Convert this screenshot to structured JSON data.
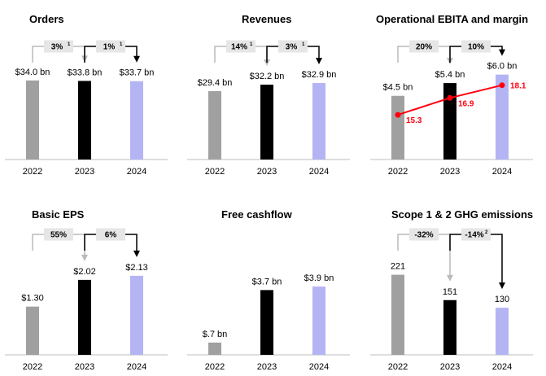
{
  "chart_data": [
    {
      "id": "orders",
      "type": "bar",
      "title": "Orders",
      "categories": [
        "2022",
        "2023",
        "2024"
      ],
      "values": [
        34.0,
        33.8,
        33.7
      ],
      "labels": [
        "$34.0 bn",
        "$33.8 bn",
        "$33.7 bn"
      ],
      "changes": [
        {
          "text": "3%",
          "sup": "1",
          "from": 0,
          "to": 1
        },
        {
          "text": "1%",
          "sup": "1",
          "from": 1,
          "to": 2
        }
      ],
      "ylim": [
        0,
        42
      ]
    },
    {
      "id": "revenues",
      "type": "bar",
      "title": "Revenues",
      "categories": [
        "2022",
        "2023",
        "2024"
      ],
      "values": [
        29.4,
        32.2,
        32.9
      ],
      "labels": [
        "$29.4 bn",
        "$32.2 bn",
        "$32.9 bn"
      ],
      "changes": [
        {
          "text": "14%",
          "sup": "1",
          "from": 0,
          "to": 1
        },
        {
          "text": "3%",
          "sup": "1",
          "from": 1,
          "to": 2
        }
      ],
      "ylim": [
        0,
        42
      ]
    },
    {
      "id": "ebita",
      "type": "bar",
      "title": "Operational EBITA and margin",
      "categories": [
        "2022",
        "2023",
        "2024"
      ],
      "values": [
        4.5,
        5.4,
        6.0
      ],
      "labels": [
        "$4.5 bn",
        "$5.4 bn",
        "$6.0 bn"
      ],
      "changes": [
        {
          "text": "20%",
          "sup": "",
          "from": 0,
          "to": 1
        },
        {
          "text": "10%",
          "sup": "",
          "from": 1,
          "to": 2
        }
      ],
      "line": {
        "name": "Operational EBITA margin (%)",
        "values": [
          15.3,
          16.9,
          18.1
        ],
        "labels": [
          "15.3",
          "16.9",
          "18.1"
        ],
        "color": "#ff000f",
        "ylim": [
          10,
          20
        ]
      },
      "ylim": [
        0,
        6.9
      ]
    },
    {
      "id": "eps",
      "type": "bar",
      "title": "Basic EPS",
      "categories": [
        "2022",
        "2023",
        "2024"
      ],
      "values": [
        1.3,
        2.02,
        2.13
      ],
      "labels": [
        "$1.30",
        "$2.02",
        "$2.13"
      ],
      "changes": [
        {
          "text": "55%",
          "sup": "",
          "from": 0,
          "to": 1
        },
        {
          "text": "6%",
          "sup": "",
          "from": 1,
          "to": 2
        }
      ],
      "ylim": [
        0,
        2.5
      ]
    },
    {
      "id": "fcf",
      "type": "bar",
      "title": "Free cashflow",
      "categories": [
        "2022",
        "2023",
        "2024"
      ],
      "values": [
        0.7,
        3.7,
        3.9
      ],
      "labels": [
        "$.7 bn",
        "$3.7 bn",
        "$3.9 bn"
      ],
      "changes": [],
      "ylim": [
        0,
        5.3
      ]
    },
    {
      "id": "ghg",
      "type": "bar",
      "title": "Scope 1 & 2 GHG emissions",
      "categories": [
        "2022",
        "2023",
        "2024"
      ],
      "values": [
        221,
        151,
        130
      ],
      "labels": [
        "221",
        "151",
        "130"
      ],
      "changes": [
        {
          "text": "-32%",
          "sup": "",
          "from": 0,
          "to": 1
        },
        {
          "text": "-14%",
          "sup": "2",
          "from": 1,
          "to": 2
        }
      ],
      "ylim": [
        0,
        256
      ]
    }
  ],
  "colors": {
    "bars": [
      "#a0a0a0",
      "#000000",
      "#b4b4f5"
    ],
    "badge_bg": "#e6e6e6",
    "arrow_first": "#bababa",
    "arrow_second": "#000000",
    "axis": "#bdbdbd"
  }
}
